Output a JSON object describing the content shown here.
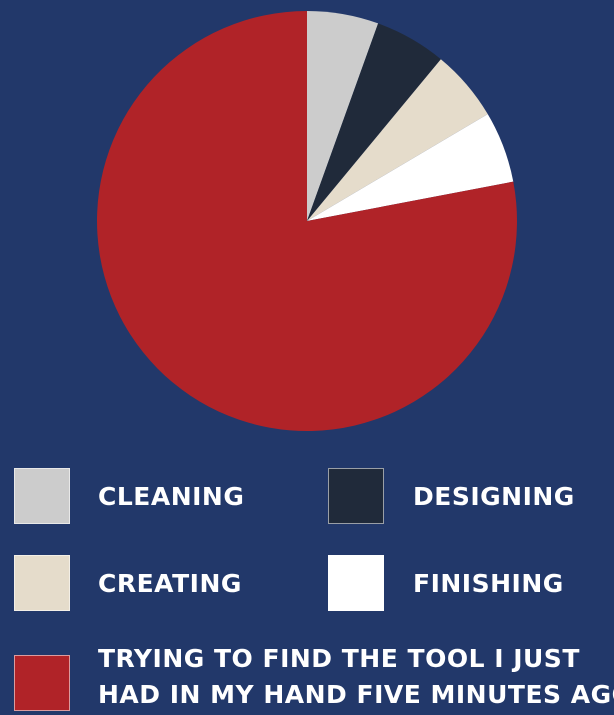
{
  "chart_data": {
    "type": "pie",
    "title": "",
    "start_angle_deg": 0,
    "direction": "clockwise",
    "slices": [
      {
        "label": "CLEANING",
        "value": 5.5,
        "color": "#CCCCCC"
      },
      {
        "label": "DESIGNING",
        "value": 5.5,
        "color": "#202A3A"
      },
      {
        "label": "CREATING",
        "value": 5.5,
        "color": "#E5DCCB"
      },
      {
        "label": "FINISHING",
        "value": 5.5,
        "color": "#FFFFFF"
      },
      {
        "label": "TRYING TO FIND THE TOOL I JUST HAD IN MY HAND FIVE MINUTES AGO",
        "value": 78.0,
        "color": "#B02328"
      }
    ],
    "legend": {
      "placement": "bottom",
      "items": [
        {
          "label": "CLEANING",
          "color": "#CCCCCC"
        },
        {
          "label": "DESIGNING",
          "color": "#202A3A"
        },
        {
          "label": "CREATING",
          "color": "#E5DCCB"
        },
        {
          "label": "FINISHING",
          "color": "#FFFFFF"
        },
        {
          "label_line1": "TRYING TO FIND THE TOOL I JUST",
          "label_line2": "HAD IN MY HAND FIVE MINUTES AGO",
          "color": "#B02328"
        }
      ]
    }
  },
  "colors": {
    "background": "#22386A",
    "legend_text": "#FFFFFF"
  }
}
